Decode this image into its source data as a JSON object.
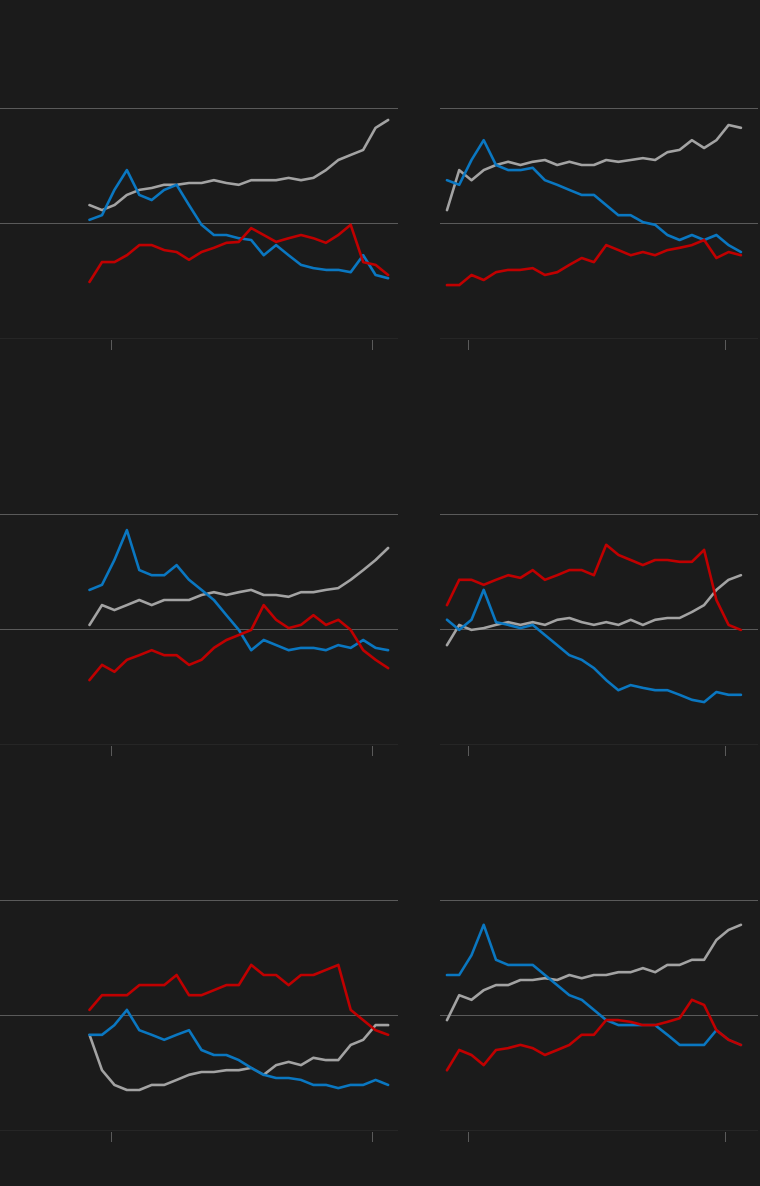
{
  "chart_data": [
    {
      "type": "line",
      "x": [
        0,
        1,
        2,
        3,
        4,
        5,
        6,
        7,
        8,
        9,
        10,
        11,
        12,
        13,
        14,
        15,
        16,
        17,
        18,
        19,
        20,
        21,
        22,
        23,
        24
      ],
      "xlim": [
        -7.2,
        24.8
      ],
      "xticks": [
        1.7,
        22.7
      ],
      "ylim": [
        0,
        50
      ],
      "yticks": [
        0,
        25,
        50
      ],
      "grid": true,
      "series": [
        {
          "color": "#a3a3a3",
          "values": [
            28.9,
            27.8,
            28.9,
            31.1,
            32.2,
            32.6,
            33.3,
            33.3,
            33.7,
            33.7,
            34.3,
            33.7,
            33.3,
            34.3,
            34.3,
            34.3,
            34.8,
            34.3,
            34.8,
            36.5,
            38.7,
            39.8,
            40.9,
            45.7,
            47.4
          ]
        },
        {
          "color": "#0a77c1",
          "values": [
            25.7,
            26.7,
            32.2,
            36.5,
            31.1,
            30,
            32.2,
            33.3,
            28.9,
            24.6,
            22.4,
            22.4,
            21.7,
            21.3,
            18,
            20.2,
            18,
            15.9,
            15.2,
            14.8,
            14.8,
            14.3,
            18,
            13.7,
            13
          ]
        },
        {
          "color": "#c00000",
          "values": [
            12.2,
            16.5,
            16.5,
            18,
            20.2,
            20.2,
            19.1,
            18.7,
            17,
            18.7,
            19.6,
            20.7,
            20.9,
            23.9,
            22.4,
            20.9,
            21.7,
            22.4,
            21.7,
            20.7,
            22.4,
            24.6,
            16.5,
            15.9,
            13.7
          ]
        }
      ]
    },
    {
      "type": "line",
      "x": [
        0,
        1,
        2,
        3,
        4,
        5,
        6,
        7,
        8,
        9,
        10,
        11,
        12,
        13,
        14,
        15,
        16,
        17,
        18,
        19,
        20,
        21,
        22,
        23,
        24
      ],
      "xlim": [
        -0.57,
        25.4
      ],
      "xticks": [
        1.7,
        22.7
      ],
      "ylim": [
        0,
        50
      ],
      "yticks": [
        0,
        25,
        50
      ],
      "grid": true,
      "series": [
        {
          "color": "#a3a3a3",
          "values": [
            27.8,
            36.5,
            34.3,
            36.5,
            37.6,
            38.3,
            37.6,
            38.3,
            38.7,
            37.6,
            38.3,
            37.6,
            37.6,
            38.7,
            38.3,
            38.7,
            39.1,
            38.7,
            40.4,
            40.9,
            43,
            41.3,
            43,
            46.3,
            45.7
          ]
        },
        {
          "color": "#0a77c1",
          "values": [
            34.3,
            33.3,
            38.7,
            43,
            37.6,
            36.5,
            36.5,
            37,
            34.3,
            33.3,
            32.2,
            31.1,
            31.1,
            28.9,
            26.7,
            26.7,
            25.2,
            24.6,
            22.4,
            21.3,
            22.4,
            21.3,
            22.4,
            20.2,
            18.7
          ]
        },
        {
          "color": "#c00000",
          "values": [
            11.5,
            11.5,
            13.7,
            12.6,
            14.3,
            14.8,
            14.8,
            15.2,
            13.7,
            14.3,
            15.9,
            17.4,
            16.5,
            20.2,
            19.1,
            18,
            18.7,
            18,
            19.1,
            19.6,
            20.2,
            21.3,
            17.4,
            18.7,
            18
          ]
        }
      ]
    },
    {
      "type": "line",
      "x": [
        0,
        1,
        2,
        3,
        4,
        5,
        6,
        7,
        8,
        9,
        10,
        11,
        12,
        13,
        14,
        15,
        16,
        17,
        18,
        19,
        20,
        21,
        22,
        23,
        24
      ],
      "xlim": [
        -7.2,
        24.8
      ],
      "xticks": [
        1.7,
        22.7
      ],
      "ylim": [
        0,
        50
      ],
      "yticks": [
        0,
        25,
        50
      ],
      "grid": true,
      "series": [
        {
          "color": "#a3a3a3",
          "values": [
            25.9,
            30.2,
            29.1,
            30.2,
            31.3,
            30.2,
            31.3,
            31.3,
            31.3,
            32.4,
            33,
            32.4,
            33,
            33.5,
            32.4,
            32.4,
            32,
            33,
            33,
            33.5,
            33.9,
            35.7,
            37.8,
            40,
            42.6
          ]
        },
        {
          "color": "#0a77c1",
          "values": [
            33.5,
            34.6,
            40,
            46.5,
            37.8,
            36.7,
            36.7,
            38.9,
            35.7,
            33.5,
            31.3,
            28,
            24.8,
            20.4,
            22.6,
            21.5,
            20.4,
            20.9,
            20.9,
            20.4,
            21.5,
            20.9,
            22.6,
            20.9,
            20.4
          ]
        },
        {
          "color": "#c00000",
          "values": [
            13.9,
            17.2,
            15.7,
            18.3,
            19.3,
            20.4,
            19.3,
            19.3,
            17.2,
            18.3,
            20.9,
            22.6,
            23.7,
            24.8,
            30.2,
            27,
            25.2,
            25.9,
            28,
            25.9,
            27,
            24.8,
            20.4,
            18.3,
            16.5
          ]
        }
      ]
    },
    {
      "type": "line",
      "x": [
        0,
        1,
        2,
        3,
        4,
        5,
        6,
        7,
        8,
        9,
        10,
        11,
        12,
        13,
        14,
        15,
        16,
        17,
        18,
        19,
        20,
        21,
        22,
        23,
        24
      ],
      "xlim": [
        -0.57,
        25.4
      ],
      "xticks": [
        1.7,
        22.7
      ],
      "ylim": [
        0,
        50
      ],
      "yticks": [
        0,
        25,
        50
      ],
      "grid": true,
      "series": [
        {
          "color": "#a3a3a3",
          "values": [
            21.5,
            25.9,
            24.8,
            25.2,
            25.9,
            26.5,
            25.9,
            26.5,
            25.9,
            27,
            27.4,
            26.5,
            25.9,
            26.5,
            25.9,
            27,
            25.9,
            27,
            27.4,
            27.4,
            28.7,
            30.2,
            33.5,
            35.7,
            36.7
          ]
        },
        {
          "color": "#0a77c1",
          "values": [
            27,
            24.8,
            27,
            33.5,
            26.5,
            25.9,
            25.2,
            25.9,
            23.7,
            21.5,
            19.3,
            18.3,
            16.5,
            13.9,
            11.7,
            12.8,
            12.2,
            11.7,
            11.7,
            10.7,
            9.6,
            9.1,
            11.3,
            10.7,
            10.7
          ]
        },
        {
          "color": "#c00000",
          "values": [
            30.2,
            35.7,
            35.7,
            34.6,
            35.7,
            36.7,
            36.1,
            37.8,
            35.7,
            36.7,
            37.8,
            37.8,
            36.7,
            43.3,
            41.1,
            40,
            38.9,
            40,
            40,
            39.6,
            39.6,
            42.2,
            31.3,
            25.9,
            24.8
          ]
        }
      ]
    },
    {
      "type": "line",
      "x": [
        0,
        1,
        2,
        3,
        4,
        5,
        6,
        7,
        8,
        9,
        10,
        11,
        12,
        13,
        14,
        15,
        16,
        17,
        18,
        19,
        20,
        21,
        22,
        23,
        24
      ],
      "xlim": [
        -7.2,
        24.8
      ],
      "xticks": [
        1.7,
        22.7
      ],
      "ylim": [
        0,
        50
      ],
      "yticks": [
        0,
        25,
        50
      ],
      "grid": true,
      "series": [
        {
          "color": "#a3a3a3",
          "values": [
            20.7,
            13,
            9.8,
            8.7,
            8.7,
            9.8,
            9.8,
            10.9,
            12,
            12.6,
            12.6,
            13,
            13,
            13.5,
            12,
            14.1,
            14.8,
            14.1,
            15.7,
            15.2,
            15.2,
            18.5,
            19.6,
            22.8,
            22.8
          ]
        },
        {
          "color": "#0a77c1",
          "values": [
            20.7,
            20.7,
            22.8,
            26.1,
            21.7,
            20.7,
            19.6,
            20.7,
            21.7,
            17.4,
            16.3,
            16.3,
            15.2,
            13.5,
            12,
            11.3,
            11.3,
            10.9,
            9.8,
            9.8,
            9.1,
            9.8,
            9.8,
            10.9,
            9.8
          ]
        },
        {
          "color": "#c00000",
          "values": [
            26.1,
            29.3,
            29.3,
            29.3,
            31.5,
            31.5,
            31.5,
            33.7,
            29.3,
            29.3,
            30.4,
            31.5,
            31.5,
            35.9,
            33.7,
            33.7,
            31.5,
            33.7,
            33.7,
            34.8,
            35.9,
            26.1,
            23.9,
            21.7,
            20.7
          ]
        }
      ]
    },
    {
      "type": "line",
      "x": [
        0,
        1,
        2,
        3,
        4,
        5,
        6,
        7,
        8,
        9,
        10,
        11,
        12,
        13,
        14,
        15,
        16,
        17,
        18,
        19,
        20,
        21,
        22,
        23,
        24
      ],
      "xlim": [
        -0.57,
        25.4
      ],
      "xticks": [
        1.7,
        22.7
      ],
      "ylim": [
        0,
        50
      ],
      "yticks": [
        0,
        25,
        50
      ],
      "grid": true,
      "series": [
        {
          "color": "#a3a3a3",
          "values": [
            23.9,
            29.3,
            28.3,
            30.4,
            31.5,
            31.5,
            32.6,
            32.6,
            33,
            32.6,
            33.7,
            33,
            33.7,
            33.7,
            34.3,
            34.3,
            35.2,
            34.3,
            35.9,
            35.9,
            37,
            37,
            41.3,
            43.5,
            44.6
          ]
        },
        {
          "color": "#0a77c1",
          "values": [
            33.7,
            33.7,
            38,
            44.6,
            37,
            35.9,
            35.9,
            35.9,
            33.7,
            31.5,
            29.3,
            28.3,
            26.1,
            23.9,
            22.8,
            22.8,
            22.8,
            22.8,
            20.7,
            18.5,
            18.5,
            18.5,
            21.7,
            19.6,
            18.5
          ]
        },
        {
          "color": "#c00000",
          "values": [
            13,
            17.4,
            16.3,
            14.1,
            17.4,
            17.8,
            18.5,
            17.8,
            16.3,
            17.4,
            18.5,
            20.7,
            20.7,
            23.9,
            23.9,
            23.5,
            22.8,
            22.8,
            23.5,
            24.3,
            28.3,
            27.2,
            21.7,
            19.6,
            18.5
          ]
        }
      ]
    }
  ]
}
